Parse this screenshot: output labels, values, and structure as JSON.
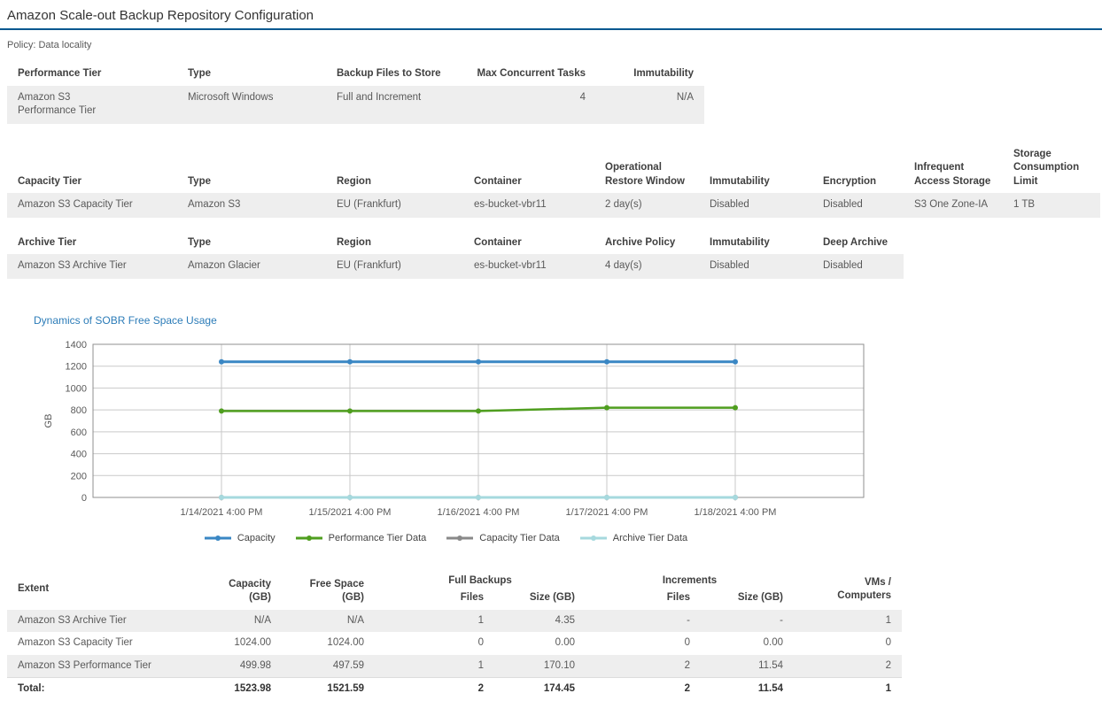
{
  "page": {
    "title": "Amazon Scale-out Backup Repository Configuration",
    "policy": "Policy: Data locality"
  },
  "colors": {
    "title_rule": "#00588f",
    "chart_title": "#2c7cb8",
    "row_shade": "#eeeeee",
    "capacity_line": "#3a87c4",
    "performance_line": "#4f9e1f",
    "capacity_tier_line": "#898989",
    "archive_tier_line": "#a6d9de"
  },
  "performance_table": {
    "headers": [
      "Performance Tier",
      "Type",
      "Backup Files to Store",
      "Max Concurrent Tasks",
      "Immutability"
    ],
    "rows": [
      [
        "Amazon S3 Performance Tier",
        "Microsoft Windows",
        "Full and Increment",
        "4",
        "N/A"
      ]
    ]
  },
  "capacity_table": {
    "headers": [
      "Capacity Tier",
      "Type",
      "Region",
      "Container",
      "Operational Restore Window",
      "Immutability",
      "Encryption",
      "Infrequent Access Storage",
      "Storage Consumption Limit"
    ],
    "rows": [
      [
        "Amazon S3 Capacity Tier",
        "Amazon S3",
        "EU (Frankfurt)",
        "es-bucket-vbr11",
        "2 day(s)",
        "Disabled",
        "Disabled",
        "S3 One Zone-IA",
        "1 TB"
      ]
    ]
  },
  "archive_table": {
    "headers": [
      "Archive Tier",
      "Type",
      "Region",
      "Container",
      "Archive Policy",
      "Immutability",
      "Deep Archive"
    ],
    "rows": [
      [
        "Amazon S3 Archive Tier",
        "Amazon Glacier",
        "EU (Frankfurt)",
        "es-bucket-vbr11",
        "4 day(s)",
        "Disabled",
        "Disabled"
      ]
    ]
  },
  "chart_data": {
    "type": "line",
    "title": "Dynamics of SOBR Free Space Usage",
    "ylabel": "GB",
    "ylim": [
      0,
      1400
    ],
    "ytick_step": 200,
    "grid": true,
    "legend_position": "bottom",
    "x": [
      "1/14/2021 4:00 PM",
      "1/15/2021 4:00 PM",
      "1/16/2021 4:00 PM",
      "1/17/2021 4:00 PM",
      "1/18/2021 4:00 PM"
    ],
    "series": [
      {
        "name": "Capacity",
        "color": "#3a87c4",
        "values": [
          1240,
          1240,
          1240,
          1240,
          1240
        ]
      },
      {
        "name": "Performance Tier Data",
        "color": "#4f9e1f",
        "values": [
          790,
          790,
          790,
          820,
          820
        ]
      },
      {
        "name": "Capacity Tier Data",
        "color": "#898989",
        "values": [
          0,
          0,
          0,
          0,
          0
        ]
      },
      {
        "name": "Archive Tier Data",
        "color": "#a6d9de",
        "values": [
          0,
          0,
          0,
          0,
          0
        ]
      }
    ]
  },
  "extent_table": {
    "headers": {
      "extent": "Extent",
      "capacity_l1": "Capacity",
      "capacity_l2": "(GB)",
      "free_l1": "Free Space",
      "free_l2": "(GB)",
      "files": "Files",
      "size": "Size (GB)",
      "vms_l1": "VMs /",
      "vms_l2": "Computers"
    },
    "group_headers": {
      "full_backups": "Full Backups",
      "increments": "Increments"
    },
    "rows": [
      [
        "Amazon S3 Archive Tier",
        "N/A",
        "N/A",
        "1",
        "4.35",
        "-",
        "-",
        "1"
      ],
      [
        "Amazon S3 Capacity Tier",
        "1024.00",
        "1024.00",
        "0",
        "0.00",
        "0",
        "0.00",
        "0"
      ],
      [
        "Amazon S3 Performance Tier",
        "499.98",
        "497.59",
        "1",
        "170.10",
        "2",
        "11.54",
        "2"
      ]
    ],
    "total": [
      "Total:",
      "1523.98",
      "1521.59",
      "2",
      "174.45",
      "2",
      "11.54",
      "1"
    ]
  }
}
